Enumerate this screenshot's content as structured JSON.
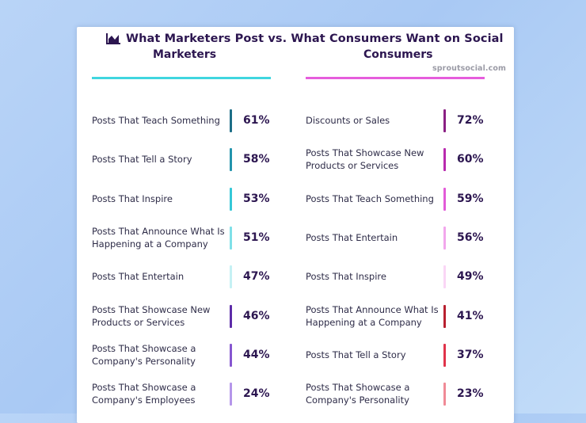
{
  "chart_data": {
    "type": "table",
    "title": "What Marketers Post vs. What Consumers Want on Social",
    "brand": "sproutsocial.com",
    "colors": {
      "marketers_line": "#3fd6df",
      "consumers_line": "#e65ddc"
    },
    "groups": [
      {
        "name": "Marketers",
        "items": [
          {
            "label": "Posts That Teach Something",
            "value": "61%",
            "color": "#1d6e87"
          },
          {
            "label": "Posts That Tell a Story",
            "value": "58%",
            "color": "#2394ad"
          },
          {
            "label": "Posts That Inspire",
            "value": "53%",
            "color": "#35c8d7"
          },
          {
            "label": "Posts That Announce What Is Happening at a Company",
            "value": "51%",
            "color": "#7fe0e8"
          },
          {
            "label": "Posts That Entertain",
            "value": "47%",
            "color": "#c5f1f4"
          },
          {
            "label": "Posts That Showcase New Products or Services",
            "value": "46%",
            "color": "#5d2ca8"
          },
          {
            "label": "Posts That Showcase a Company's Personality",
            "value": "44%",
            "color": "#8656d0"
          },
          {
            "label": "Posts That Showcase a Company's Employees",
            "value": "24%",
            "color": "#b596ea"
          }
        ]
      },
      {
        "name": "Consumers",
        "items": [
          {
            "label": "Discounts or Sales",
            "value": "72%",
            "color": "#8a1f83"
          },
          {
            "label": "Posts That Showcase New Products or Services",
            "value": "60%",
            "color": "#b82aae"
          },
          {
            "label": "Posts That Teach Something",
            "value": "59%",
            "color": "#e25bd8"
          },
          {
            "label": "Posts That Entertain",
            "value": "56%",
            "color": "#f2a7ec"
          },
          {
            "label": "Posts That Inspire",
            "value": "49%",
            "color": "#fad6f6"
          },
          {
            "label": "Posts That Announce What Is Happening at a Company",
            "value": "41%",
            "color": "#b8202f"
          },
          {
            "label": "Posts That Tell a Story",
            "value": "37%",
            "color": "#e0334a"
          },
          {
            "label": "Posts That Showcase a Company's Personality",
            "value": "23%",
            "color": "#f08a96"
          }
        ]
      }
    ]
  }
}
